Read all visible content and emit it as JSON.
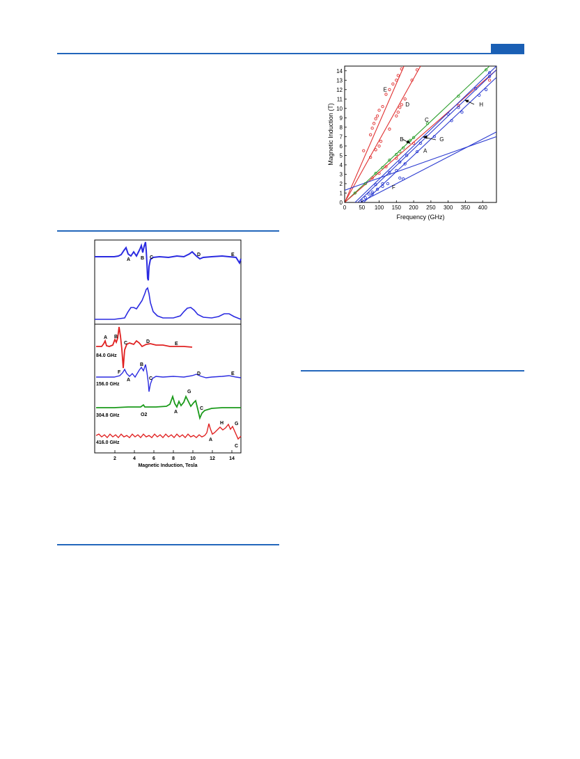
{
  "header": {
    "accent_color": "#1a5fb4"
  },
  "figure_spectra": {
    "xlabel": "Magnetic Induction, Tesla",
    "xticks": [
      "2",
      "4",
      "6",
      "8",
      "10",
      "12",
      "14"
    ],
    "top_panel_labels": [
      "A",
      "B",
      "C",
      "D",
      "E"
    ],
    "traces": [
      {
        "freq_label": "84.0 GHz",
        "color": "#e02020",
        "peak_labels": [
          "A",
          "B",
          "C",
          "D",
          "E"
        ]
      },
      {
        "freq_label": "156.0 GHz",
        "color": "#2a2ae0",
        "peak_labels": [
          "F",
          "A",
          "B",
          "C",
          "D",
          "E"
        ]
      },
      {
        "freq_label": "304.8 GHz",
        "color": "#1a9a1a",
        "peak_labels": [
          "A",
          "G",
          "C"
        ],
        "note": "O2"
      },
      {
        "freq_label": "416.0 GHz",
        "color": "#e02020",
        "peak_labels": [
          "A",
          "H",
          "G",
          "C"
        ]
      }
    ]
  },
  "chart_data": {
    "type": "scatter",
    "xlabel": "Frequency (GHz)",
    "ylabel": "Magnetic Induction (T)",
    "xlim": [
      0,
      440
    ],
    "ylim": [
      0,
      14.5
    ],
    "xticks": [
      0,
      50,
      100,
      150,
      200,
      250,
      300,
      350,
      400
    ],
    "yticks": [
      0,
      1,
      2,
      3,
      4,
      5,
      6,
      7,
      8,
      9,
      10,
      11,
      12,
      13,
      14
    ],
    "series": [
      {
        "name": "E",
        "color": "#e03030",
        "line": [
          [
            0,
            0
          ],
          [
            172,
            14.5
          ]
        ],
        "points": [
          [
            55,
            5.5
          ],
          [
            75,
            7.2
          ],
          [
            80,
            7.9
          ],
          [
            85,
            8.4
          ],
          [
            90,
            8.9
          ],
          [
            95,
            9.2
          ],
          [
            100,
            9.8
          ],
          [
            110,
            10.2
          ],
          [
            120,
            11.5
          ],
          [
            130,
            12.0
          ],
          [
            140,
            12.6
          ],
          [
            150,
            13.0
          ],
          [
            155,
            13.5
          ],
          [
            165,
            14.2
          ]
        ]
      },
      {
        "name": "D",
        "color": "#e03030",
        "line": [
          [
            0,
            0
          ],
          [
            220,
            14.5
          ]
        ],
        "points": [
          [
            75,
            4.8
          ],
          [
            90,
            5.6
          ],
          [
            100,
            6.0
          ],
          [
            105,
            6.5
          ],
          [
            130,
            7.8
          ],
          [
            150,
            9.2
          ],
          [
            155,
            9.6
          ],
          [
            160,
            10.1
          ],
          [
            165,
            10.4
          ],
          [
            175,
            11.0
          ],
          [
            195,
            13.0
          ],
          [
            210,
            14.1
          ]
        ]
      },
      {
        "name": "C",
        "color": "#30a030",
        "line": [
          [
            0,
            0
          ],
          [
            420,
            14.5
          ]
        ],
        "points": [
          [
            30,
            1.0
          ],
          [
            60,
            2.0
          ],
          [
            90,
            3.1
          ],
          [
            110,
            3.7
          ],
          [
            130,
            4.5
          ],
          [
            150,
            5.1
          ],
          [
            160,
            5.4
          ],
          [
            170,
            5.8
          ],
          [
            190,
            6.6
          ],
          [
            200,
            6.9
          ],
          [
            240,
            8.4
          ],
          [
            330,
            11.3
          ],
          [
            410,
            14.1
          ]
        ]
      },
      {
        "name": "B",
        "color": "#e03030",
        "line": [
          [
            0,
            0
          ],
          [
            440,
            14.1
          ]
        ],
        "points": [
          [
            80,
            2.6
          ],
          [
            100,
            3.1
          ],
          [
            120,
            3.8
          ],
          [
            150,
            4.7
          ],
          [
            200,
            6.3
          ],
          [
            330,
            10.3
          ],
          [
            420,
            13.0
          ]
        ]
      },
      {
        "name": "G",
        "color": "#2a3ad0",
        "line": [
          [
            38,
            0
          ],
          [
            440,
            14.1
          ]
        ],
        "points": [
          [
            90,
            1.9
          ],
          [
            130,
            3.2
          ],
          [
            160,
            4.3
          ],
          [
            180,
            5.0
          ],
          [
            220,
            6.3
          ],
          [
            300,
            9.4
          ],
          [
            380,
            12.1
          ],
          [
            420,
            13.4
          ]
        ]
      },
      {
        "name": "A",
        "color": "#2a3ad0",
        "line": [
          [
            55,
            0
          ],
          [
            440,
            13.3
          ]
        ],
        "points": [
          [
            80,
            0.9
          ],
          [
            110,
            2.0
          ],
          [
            150,
            3.4
          ],
          [
            175,
            4.1
          ],
          [
            210,
            5.4
          ],
          [
            260,
            7.0
          ],
          [
            310,
            8.7
          ],
          [
            340,
            9.6
          ],
          [
            390,
            11.4
          ],
          [
            410,
            12.0
          ]
        ]
      },
      {
        "name": "H",
        "color": "#2a3ad0",
        "line": [
          [
            30,
            0
          ],
          [
            440,
            14.5
          ]
        ],
        "points": [
          [
            330,
            10.1
          ],
          [
            420,
            13.8
          ]
        ]
      },
      {
        "name": "F",
        "color": "#2a3ad0",
        "line": [
          [
            45,
            0
          ],
          [
            440,
            7.5
          ]
        ],
        "points": [
          [
            50,
            0.2
          ],
          [
            60,
            0.5
          ],
          [
            70,
            0.9
          ],
          [
            80,
            1.1
          ],
          [
            95,
            1.4
          ],
          [
            110,
            1.7
          ],
          [
            125,
            2.0
          ],
          [
            160,
            2.6
          ],
          [
            170,
            2.5
          ]
        ]
      },
      {
        "name": "",
        "color": "#2a3ad0",
        "line": [
          [
            0,
            1.3
          ],
          [
            440,
            7.0
          ]
        ],
        "points": []
      }
    ],
    "annotations": [
      {
        "text": "E",
        "x": 112,
        "y": 11.8
      },
      {
        "text": "D",
        "x": 176,
        "y": 10.2
      },
      {
        "text": "C",
        "x": 232,
        "y": 8.6
      },
      {
        "text": "B",
        "x": 160,
        "y": 6.5
      },
      {
        "text": "G",
        "x": 275,
        "y": 6.5
      },
      {
        "text": "A",
        "x": 228,
        "y": 5.3
      },
      {
        "text": "H",
        "x": 390,
        "y": 10.2
      },
      {
        "text": "F",
        "x": 137,
        "y": 1.4
      }
    ]
  }
}
